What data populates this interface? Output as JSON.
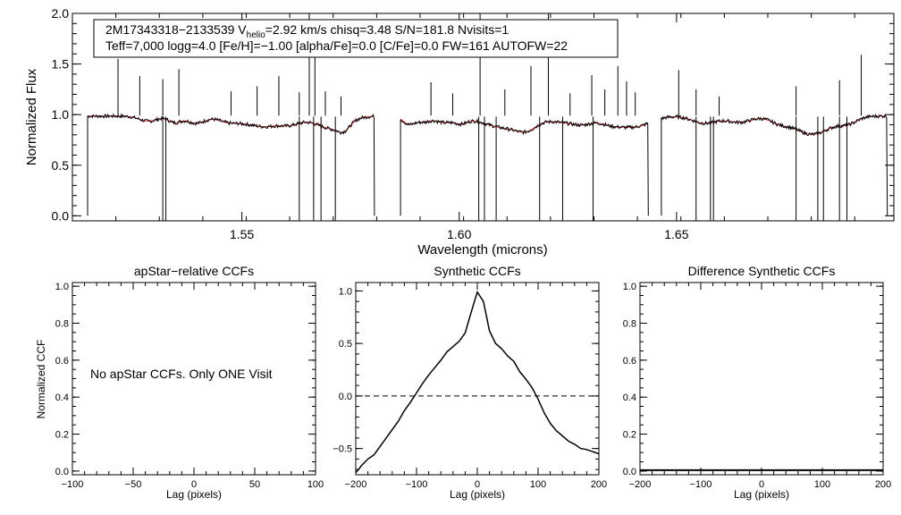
{
  "chart_data": [
    {
      "id": "spectrum",
      "type": "line",
      "xlabel": "Wavelength (microns)",
      "ylabel": "Normalized Flux",
      "xlim": [
        1.511,
        1.7
      ],
      "ylim": [
        -0.05,
        2.0
      ],
      "xticks": [
        1.55,
        1.6,
        1.65
      ],
      "xtick_labels": [
        "1.55",
        "1.60",
        "1.65"
      ],
      "yticks": [
        0.0,
        0.5,
        1.0,
        1.5,
        2.0
      ],
      "ytick_labels": [
        "0.0",
        "0.5",
        "1.0",
        "1.5",
        "2.0"
      ],
      "detector_gaps": [
        [
          1.5805,
          1.5865
        ],
        [
          1.6435,
          1.6465
        ]
      ],
      "coverage": [
        1.5145,
        1.6985
      ],
      "series": [
        {
          "name": "apStar spectrum",
          "color": "#000000"
        },
        {
          "name": "best-fit synthetic",
          "color": "#e8262e"
        }
      ],
      "spikes": [
        {
          "x": 1.5215,
          "y": 1.55
        },
        {
          "x": 1.5265,
          "y": 1.38
        },
        {
          "x": 1.5318,
          "y": 1.35
        },
        {
          "x": 1.5355,
          "y": 1.45
        },
        {
          "x": 1.5475,
          "y": 1.23
        },
        {
          "x": 1.5535,
          "y": 1.28
        },
        {
          "x": 1.5585,
          "y": 1.38
        },
        {
          "x": 1.5632,
          "y": 1.22
        },
        {
          "x": 1.5655,
          "y": 2.0
        },
        {
          "x": 1.5668,
          "y": 1.62
        },
        {
          "x": 1.5692,
          "y": 1.23
        },
        {
          "x": 1.5728,
          "y": 1.18
        },
        {
          "x": 1.5935,
          "y": 1.32
        },
        {
          "x": 1.5985,
          "y": 1.21
        },
        {
          "x": 1.6048,
          "y": 2.0
        },
        {
          "x": 1.6105,
          "y": 1.25
        },
        {
          "x": 1.6165,
          "y": 1.48
        },
        {
          "x": 1.6205,
          "y": 2.0
        },
        {
          "x": 1.6255,
          "y": 1.21
        },
        {
          "x": 1.6305,
          "y": 1.39
        },
        {
          "x": 1.6335,
          "y": 1.25
        },
        {
          "x": 1.6365,
          "y": 1.48
        },
        {
          "x": 1.6385,
          "y": 1.33
        },
        {
          "x": 1.6405,
          "y": 1.22
        },
        {
          "x": 1.6505,
          "y": 1.44
        },
        {
          "x": 1.6545,
          "y": 1.25
        },
        {
          "x": 1.6598,
          "y": 1.18
        },
        {
          "x": 1.6775,
          "y": 1.28
        },
        {
          "x": 1.6875,
          "y": 1.34
        },
        {
          "x": 1.6925,
          "y": 1.59
        }
      ],
      "dropouts": [
        1.5318,
        1.5325,
        1.5632,
        1.5665,
        1.5682,
        1.5715,
        1.6045,
        1.6058,
        1.6085,
        1.6185,
        1.6238,
        1.6308,
        1.6545,
        1.6578,
        1.6585,
        1.6775,
        1.6825,
        1.6838,
        1.6875,
        1.6892
      ],
      "absorptions": [
        {
          "x": 1.5285,
          "depth": 0.05,
          "w": 0.003
        },
        {
          "x": 1.5345,
          "depth": 0.06,
          "w": 0.002
        },
        {
          "x": 1.5395,
          "depth": 0.07,
          "w": 0.003
        },
        {
          "x": 1.5465,
          "depth": 0.05,
          "w": 0.003
        },
        {
          "x": 1.5515,
          "depth": 0.07,
          "w": 0.004
        },
        {
          "x": 1.5555,
          "depth": 0.06,
          "w": 0.003
        },
        {
          "x": 1.5605,
          "depth": 0.09,
          "w": 0.004
        },
        {
          "x": 1.5705,
          "depth": 0.12,
          "w": 0.005
        },
        {
          "x": 1.5735,
          "depth": 0.07,
          "w": 0.002
        },
        {
          "x": 1.5885,
          "depth": 0.08,
          "w": 0.002
        },
        {
          "x": 1.5918,
          "depth": 0.05,
          "w": 0.002
        },
        {
          "x": 1.5965,
          "depth": 0.06,
          "w": 0.003
        },
        {
          "x": 1.6005,
          "depth": 0.05,
          "w": 0.002
        },
        {
          "x": 1.6115,
          "depth": 0.12,
          "w": 0.008
        },
        {
          "x": 1.6155,
          "depth": 0.06,
          "w": 0.003
        },
        {
          "x": 1.6245,
          "depth": 0.05,
          "w": 0.004
        },
        {
          "x": 1.6285,
          "depth": 0.06,
          "w": 0.003
        },
        {
          "x": 1.6345,
          "depth": 0.07,
          "w": 0.004
        },
        {
          "x": 1.6405,
          "depth": 0.1,
          "w": 0.005
        },
        {
          "x": 1.6565,
          "depth": 0.07,
          "w": 0.004
        },
        {
          "x": 1.6645,
          "depth": 0.06,
          "w": 0.004
        },
        {
          "x": 1.6735,
          "depth": 0.05,
          "w": 0.003
        },
        {
          "x": 1.6812,
          "depth": 0.18,
          "w": 0.006
        },
        {
          "x": 1.6895,
          "depth": 0.06,
          "w": 0.003
        }
      ],
      "annotation": {
        "line1_a": "2M17343318−2133539  V",
        "line1_sub": "helio",
        "line1_b": "=2.92 km/s  chisq=3.48  S/N=181.8  Nvisits=1",
        "line2": "Teff=7,000 logg=4.0 [Fe/H]=−1.00 [alpha/Fe]=0.0 [C/Fe]=0.0 FW=161 AUTOFW=22"
      }
    },
    {
      "id": "ccf-apstar",
      "type": "line",
      "title": "apStar−relative CCFs",
      "xlabel": "Lag (pixels)",
      "ylabel": "Normalized CCF",
      "xlim": [
        -100,
        100
      ],
      "ylim": [
        -0.02,
        1.02
      ],
      "xticks": [
        -100,
        -50,
        0,
        50,
        100
      ],
      "xtick_labels": [
        "−100",
        "−50",
        "0",
        "50",
        "100"
      ],
      "yticks": [
        0.0,
        0.2,
        0.4,
        0.6,
        0.8,
        1.0
      ],
      "ytick_labels": [
        "0.0",
        "0.2",
        "0.4",
        "0.6",
        "0.8",
        "1.0"
      ],
      "message": "No apStar CCFs.  Only ONE Visit",
      "series": []
    },
    {
      "id": "ccf-synthetic",
      "type": "line",
      "title": "Synthetic CCFs",
      "xlabel": "Lag (pixels)",
      "xlim": [
        -200,
        200
      ],
      "ylim": [
        -0.75,
        1.08
      ],
      "xticks": [
        -200,
        -100,
        0,
        100,
        200
      ],
      "xtick_labels": [
        "−200",
        "−100",
        "0",
        "100",
        "200"
      ],
      "yticks": [
        -0.5,
        0.0,
        0.5,
        1.0
      ],
      "ytick_labels": [
        "−0.5",
        "0.0",
        "0.5",
        "1.0"
      ],
      "zero_line": 0,
      "series": [
        {
          "name": "synthetic CCF",
          "x": [
            -200,
            -190,
            -180,
            -170,
            -160,
            -150,
            -140,
            -130,
            -120,
            -110,
            -100,
            -90,
            -80,
            -70,
            -60,
            -50,
            -40,
            -30,
            -20,
            -10,
            0,
            10,
            20,
            30,
            40,
            50,
            60,
            70,
            80,
            90,
            100,
            110,
            120,
            130,
            140,
            150,
            160,
            170,
            180,
            190,
            200
          ],
          "y": [
            -0.73,
            -0.66,
            -0.6,
            -0.56,
            -0.48,
            -0.4,
            -0.32,
            -0.24,
            -0.14,
            -0.06,
            0.03,
            0.12,
            0.2,
            0.27,
            0.34,
            0.42,
            0.47,
            0.52,
            0.6,
            0.8,
            0.99,
            0.9,
            0.62,
            0.5,
            0.45,
            0.38,
            0.33,
            0.23,
            0.16,
            0.08,
            -0.03,
            -0.16,
            -0.26,
            -0.33,
            -0.38,
            -0.43,
            -0.46,
            -0.5,
            -0.51,
            -0.53,
            -0.55
          ]
        }
      ]
    },
    {
      "id": "ccf-difference",
      "type": "line",
      "title": "Difference Synthetic CCFs",
      "xlabel": "Lag (pixels)",
      "xlim": [
        -200,
        200
      ],
      "ylim": [
        -0.02,
        1.02
      ],
      "xticks": [
        -200,
        -100,
        0,
        100,
        200
      ],
      "xtick_labels": [
        "−200",
        "−100",
        "0",
        "100",
        "200"
      ],
      "yticks": [
        0.0,
        0.2,
        0.4,
        0.6,
        0.8,
        1.0
      ],
      "ytick_labels": [
        "0.0",
        "0.2",
        "0.4",
        "0.6",
        "0.8",
        "1.0"
      ],
      "series": [
        {
          "name": "difference CCF",
          "x": [
            -200,
            200
          ],
          "y": [
            0.0,
            0.0
          ]
        }
      ]
    }
  ]
}
